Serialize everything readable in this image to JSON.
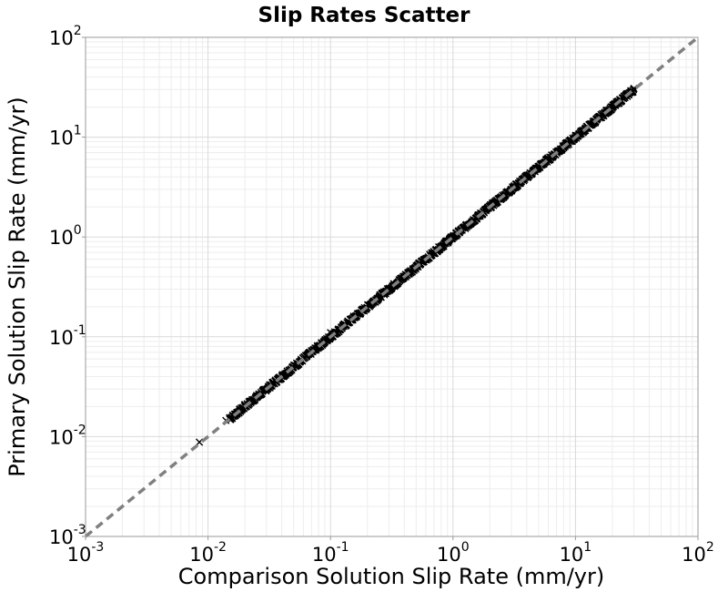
{
  "chart_data": {
    "type": "scatter",
    "title": "Slip Rates Scatter",
    "xlabel": "Comparison Solution Slip Rate (mm/yr)",
    "ylabel": "Primary Solution Slip Rate (mm/yr)",
    "x_scale": "log",
    "y_scale": "log",
    "xlim": [
      0.001,
      100
    ],
    "ylim": [
      0.001,
      100
    ],
    "x_ticks": [
      {
        "base": "10",
        "exp": "-3",
        "value": 0.001
      },
      {
        "base": "10",
        "exp": "-2",
        "value": 0.01
      },
      {
        "base": "10",
        "exp": "-1",
        "value": 0.1
      },
      {
        "base": "10",
        "exp": "0",
        "value": 1
      },
      {
        "base": "10",
        "exp": "1",
        "value": 10
      },
      {
        "base": "10",
        "exp": "2",
        "value": 100
      }
    ],
    "y_ticks": [
      {
        "base": "10",
        "exp": "-3",
        "value": 0.001
      },
      {
        "base": "10",
        "exp": "-2",
        "value": 0.01
      },
      {
        "base": "10",
        "exp": "-1",
        "value": 0.1
      },
      {
        "base": "10",
        "exp": "0",
        "value": 1
      },
      {
        "base": "10",
        "exp": "1",
        "value": 10
      },
      {
        "base": "10",
        "exp": "2",
        "value": 100
      }
    ],
    "grid": true,
    "series": [
      {
        "marker": "cross",
        "color": "#000000",
        "points": [
          [
            0.0085,
            0.0088
          ],
          [
            0.014,
            0.0145
          ],
          [
            0.015,
            0.0155
          ],
          [
            0.016,
            0.016
          ],
          [
            0.018,
            0.018
          ],
          [
            0.02,
            0.021
          ],
          [
            0.1,
            0.11
          ]
        ],
        "dense_range": [
          0.015,
          30
        ]
      }
    ],
    "reference_line": {
      "style": "dashed",
      "color": "#808080",
      "from": [
        0.001,
        0.001
      ],
      "to": [
        100,
        100
      ]
    }
  }
}
